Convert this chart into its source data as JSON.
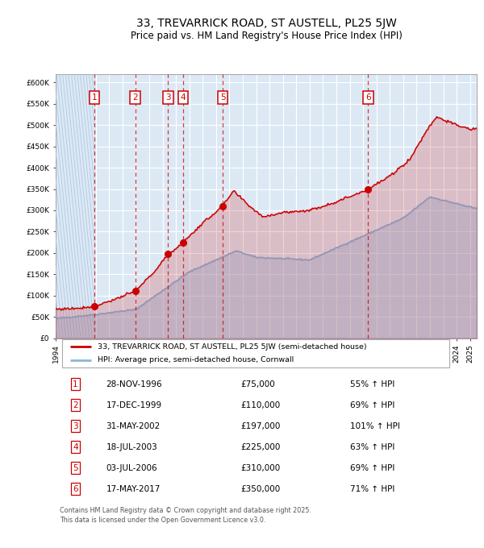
{
  "title": "33, TREVARRICK ROAD, ST AUSTELL, PL25 5JW",
  "subtitle": "Price paid vs. HM Land Registry's House Price Index (HPI)",
  "legend_label_red": "33, TREVARRICK ROAD, ST AUSTELL, PL25 5JW (semi-detached house)",
  "legend_label_blue": "HPI: Average price, semi-detached house, Cornwall",
  "footer": "Contains HM Land Registry data © Crown copyright and database right 2025.\nThis data is licensed under the Open Government Licence v3.0.",
  "sales": [
    {
      "num": 1,
      "date": "28-NOV-1996",
      "price": 75000,
      "hpi_pct": "55% ↑ HPI",
      "year": 1996.9
    },
    {
      "num": 2,
      "date": "17-DEC-1999",
      "price": 110000,
      "hpi_pct": "69% ↑ HPI",
      "year": 1999.95
    },
    {
      "num": 3,
      "date": "31-MAY-2002",
      "price": 197000,
      "hpi_pct": "101% ↑ HPI",
      "year": 2002.41
    },
    {
      "num": 4,
      "date": "18-JUL-2003",
      "price": 225000,
      "hpi_pct": "63% ↑ HPI",
      "year": 2003.54
    },
    {
      "num": 5,
      "date": "03-JUL-2006",
      "price": 310000,
      "hpi_pct": "69% ↑ HPI",
      "year": 2006.5
    },
    {
      "num": 6,
      "date": "17-MAY-2017",
      "price": 350000,
      "hpi_pct": "71% ↑ HPI",
      "year": 2017.37
    }
  ],
  "ylim": [
    0,
    620000
  ],
  "yticks": [
    0,
    50000,
    100000,
    150000,
    200000,
    250000,
    300000,
    350000,
    400000,
    450000,
    500000,
    550000,
    600000
  ],
  "xlim_start": 1994,
  "xlim_end": 2025.5,
  "bg_color": "#dce9f5",
  "grid_color": "#ffffff",
  "red_color": "#cc0000",
  "blue_color": "#89b8dd",
  "hatch_line_color": "#b0c8e0",
  "title_fontsize": 10,
  "subtitle_fontsize": 8.5
}
